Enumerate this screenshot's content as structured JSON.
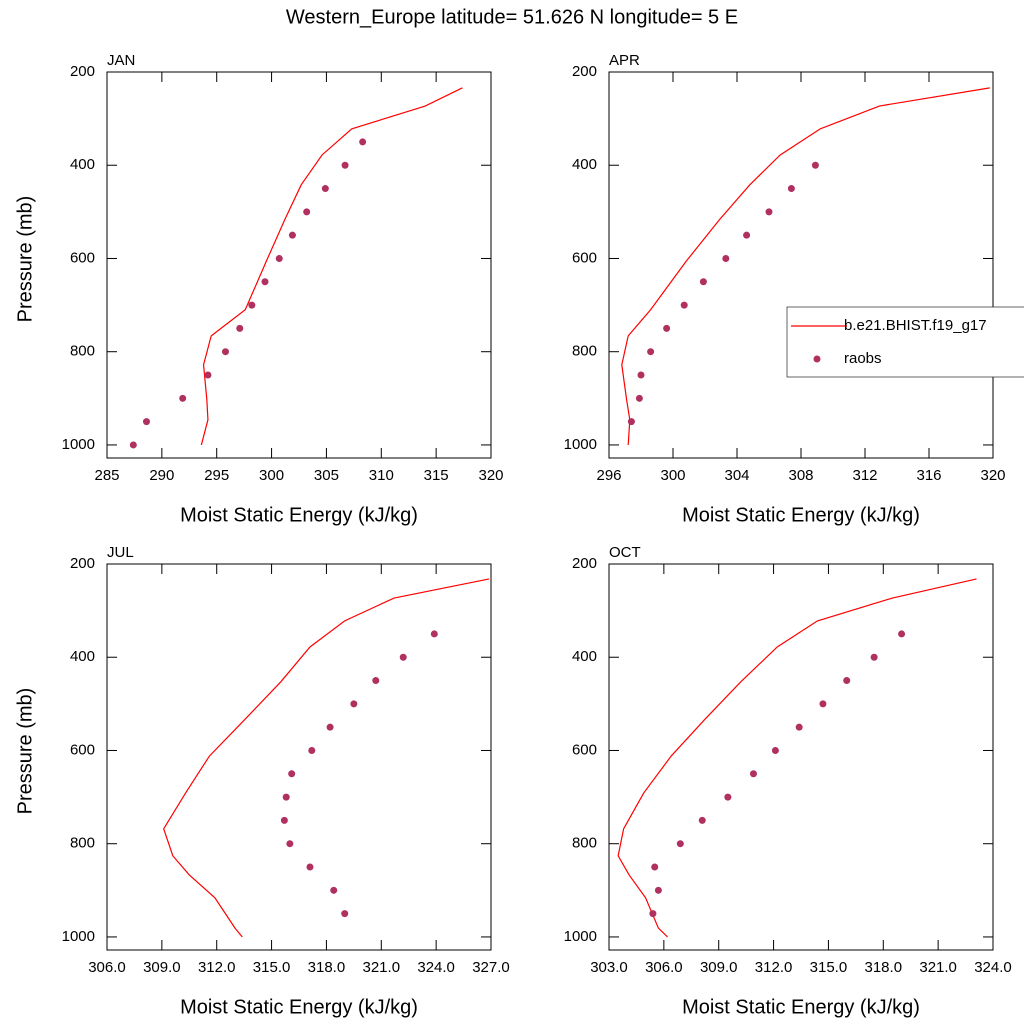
{
  "title": "Western_Europe  latitude= 51.626 N longitude= 5 E",
  "chart_data": [
    {
      "type": "line",
      "title": "JAN",
      "x_label": "Moist Static Energy (kJ/kg)",
      "y_label": "Pressure (mb)",
      "xlim": [
        285,
        320
      ],
      "ylim": [
        1028,
        200
      ],
      "xticks": [
        285,
        290,
        295,
        300,
        305,
        310,
        315,
        320
      ],
      "yticks": [
        200,
        400,
        600,
        800,
        1000
      ],
      "series": [
        {
          "name": "b.e21.BHIST.f19_g17",
          "color": "#ff0000",
          "style": "line",
          "x": [
            317.4,
            314.0,
            307.3,
            304.6,
            302.7,
            301.2,
            299.5,
            297.6,
            294.5,
            293.8,
            294.1,
            294.2,
            293.6
          ],
          "values": [
            234,
            273,
            322,
            378,
            442,
            517,
            607,
            710,
            766,
            828,
            903,
            946,
            1000
          ]
        },
        {
          "name": "raobs",
          "color": "#b03060",
          "style": "markers",
          "x": [
            308.3,
            306.7,
            304.9,
            303.2,
            301.9,
            300.7,
            299.4,
            298.2,
            297.1,
            295.8,
            294.2,
            291.9,
            288.6,
            287.4
          ],
          "values": [
            350,
            400,
            450,
            500,
            550,
            600,
            650,
            700,
            750,
            800,
            850,
            900,
            950,
            1000
          ]
        }
      ]
    },
    {
      "type": "line",
      "title": "APR",
      "x_label": "Moist Static Energy (kJ/kg)",
      "legend": "right",
      "xlim": [
        296,
        320
      ],
      "ylim": [
        1028,
        200
      ],
      "xticks": [
        296,
        300,
        304,
        308,
        312,
        316,
        320
      ],
      "yticks": [
        200,
        400,
        600,
        800,
        1000
      ],
      "series": [
        {
          "name": "b.e21.BHIST.f19_g17",
          "color": "#ff0000",
          "style": "line",
          "x": [
            319.8,
            312.9,
            309.2,
            306.7,
            304.8,
            302.9,
            300.8,
            298.6,
            297.2,
            296.8,
            297.1,
            297.3,
            297.2
          ],
          "values": [
            234,
            273,
            322,
            378,
            442,
            517,
            607,
            710,
            766,
            828,
            903,
            946,
            1000
          ]
        },
        {
          "name": "raobs",
          "color": "#b03060",
          "style": "markers",
          "x": [
            308.9,
            307.4,
            306.0,
            304.6,
            303.3,
            301.9,
            300.7,
            299.6,
            298.6,
            298.0,
            297.9,
            297.4
          ],
          "values": [
            400,
            450,
            500,
            550,
            600,
            650,
            700,
            750,
            800,
            850,
            900,
            950
          ]
        }
      ]
    },
    {
      "type": "line",
      "title": "JUL",
      "x_label": "Moist Static Energy (kJ/kg)",
      "y_label": "Pressure (mb)",
      "xlim": [
        306,
        327
      ],
      "ylim": [
        1028,
        200
      ],
      "xticks": [
        {
          "value": 306,
          "label": "306.0"
        },
        {
          "value": 309,
          "label": "309.0"
        },
        {
          "value": 312,
          "label": "312.0"
        },
        {
          "value": 315,
          "label": "315.0"
        },
        {
          "value": 318,
          "label": "318.0"
        },
        {
          "value": 321,
          "label": "321.0"
        },
        {
          "value": 324,
          "label": "324.0"
        },
        {
          "value": 327,
          "label": "327.0"
        }
      ],
      "yticks": [
        200,
        400,
        600,
        800,
        1000
      ],
      "series": [
        {
          "name": "b.e21.BHIST.f19_g17",
          "color": "#ff0000",
          "style": "line",
          "x": [
            326.9,
            321.7,
            319.0,
            317.1,
            315.5,
            313.5,
            311.6,
            310.3,
            309.1,
            309.6,
            310.5,
            311.9,
            313.0,
            313.4
          ],
          "values": [
            232,
            273,
            322,
            378,
            453,
            535,
            612,
            691,
            768,
            826,
            867,
            916,
            981,
            1000
          ]
        },
        {
          "name": "raobs",
          "color": "#b03060",
          "style": "markers",
          "x": [
            323.9,
            322.2,
            320.7,
            319.5,
            318.2,
            317.2,
            316.1,
            315.8,
            315.7,
            316.0,
            317.1,
            318.4,
            319.0
          ],
          "values": [
            350,
            400,
            450,
            500,
            550,
            600,
            650,
            700,
            750,
            800,
            850,
            900,
            950
          ]
        }
      ]
    },
    {
      "type": "line",
      "title": "OCT",
      "x_label": "Moist Static Energy (kJ/kg)",
      "xlim": [
        303,
        324
      ],
      "ylim": [
        1028,
        200
      ],
      "xticks": [
        {
          "value": 303,
          "label": "303.0"
        },
        {
          "value": 306,
          "label": "306.0"
        },
        {
          "value": 309,
          "label": "309.0"
        },
        {
          "value": 312,
          "label": "312.0"
        },
        {
          "value": 315,
          "label": "315.0"
        },
        {
          "value": 318,
          "label": "318.0"
        },
        {
          "value": 321,
          "label": "321.0"
        },
        {
          "value": 324,
          "label": "324.0"
        }
      ],
      "yticks": [
        200,
        400,
        600,
        800,
        1000
      ],
      "series": [
        {
          "name": "b.e21.BHIST.f19_g17",
          "color": "#ff0000",
          "style": "line",
          "x": [
            323.1,
            318.5,
            314.4,
            312.2,
            310.2,
            308.2,
            306.4,
            304.9,
            303.8,
            303.5,
            304.1,
            305.0,
            305.7,
            306.2
          ],
          "values": [
            232,
            273,
            322,
            378,
            453,
            535,
            612,
            691,
            768,
            826,
            867,
            916,
            981,
            1000
          ]
        },
        {
          "name": "raobs",
          "color": "#b03060",
          "style": "markers",
          "x": [
            319.0,
            317.5,
            316.0,
            314.7,
            313.4,
            312.1,
            310.9,
            309.5,
            308.1,
            306.9,
            305.5,
            305.7,
            305.4
          ],
          "values": [
            350,
            400,
            450,
            500,
            550,
            600,
            650,
            700,
            750,
            800,
            850,
            900,
            950
          ]
        }
      ]
    }
  ]
}
